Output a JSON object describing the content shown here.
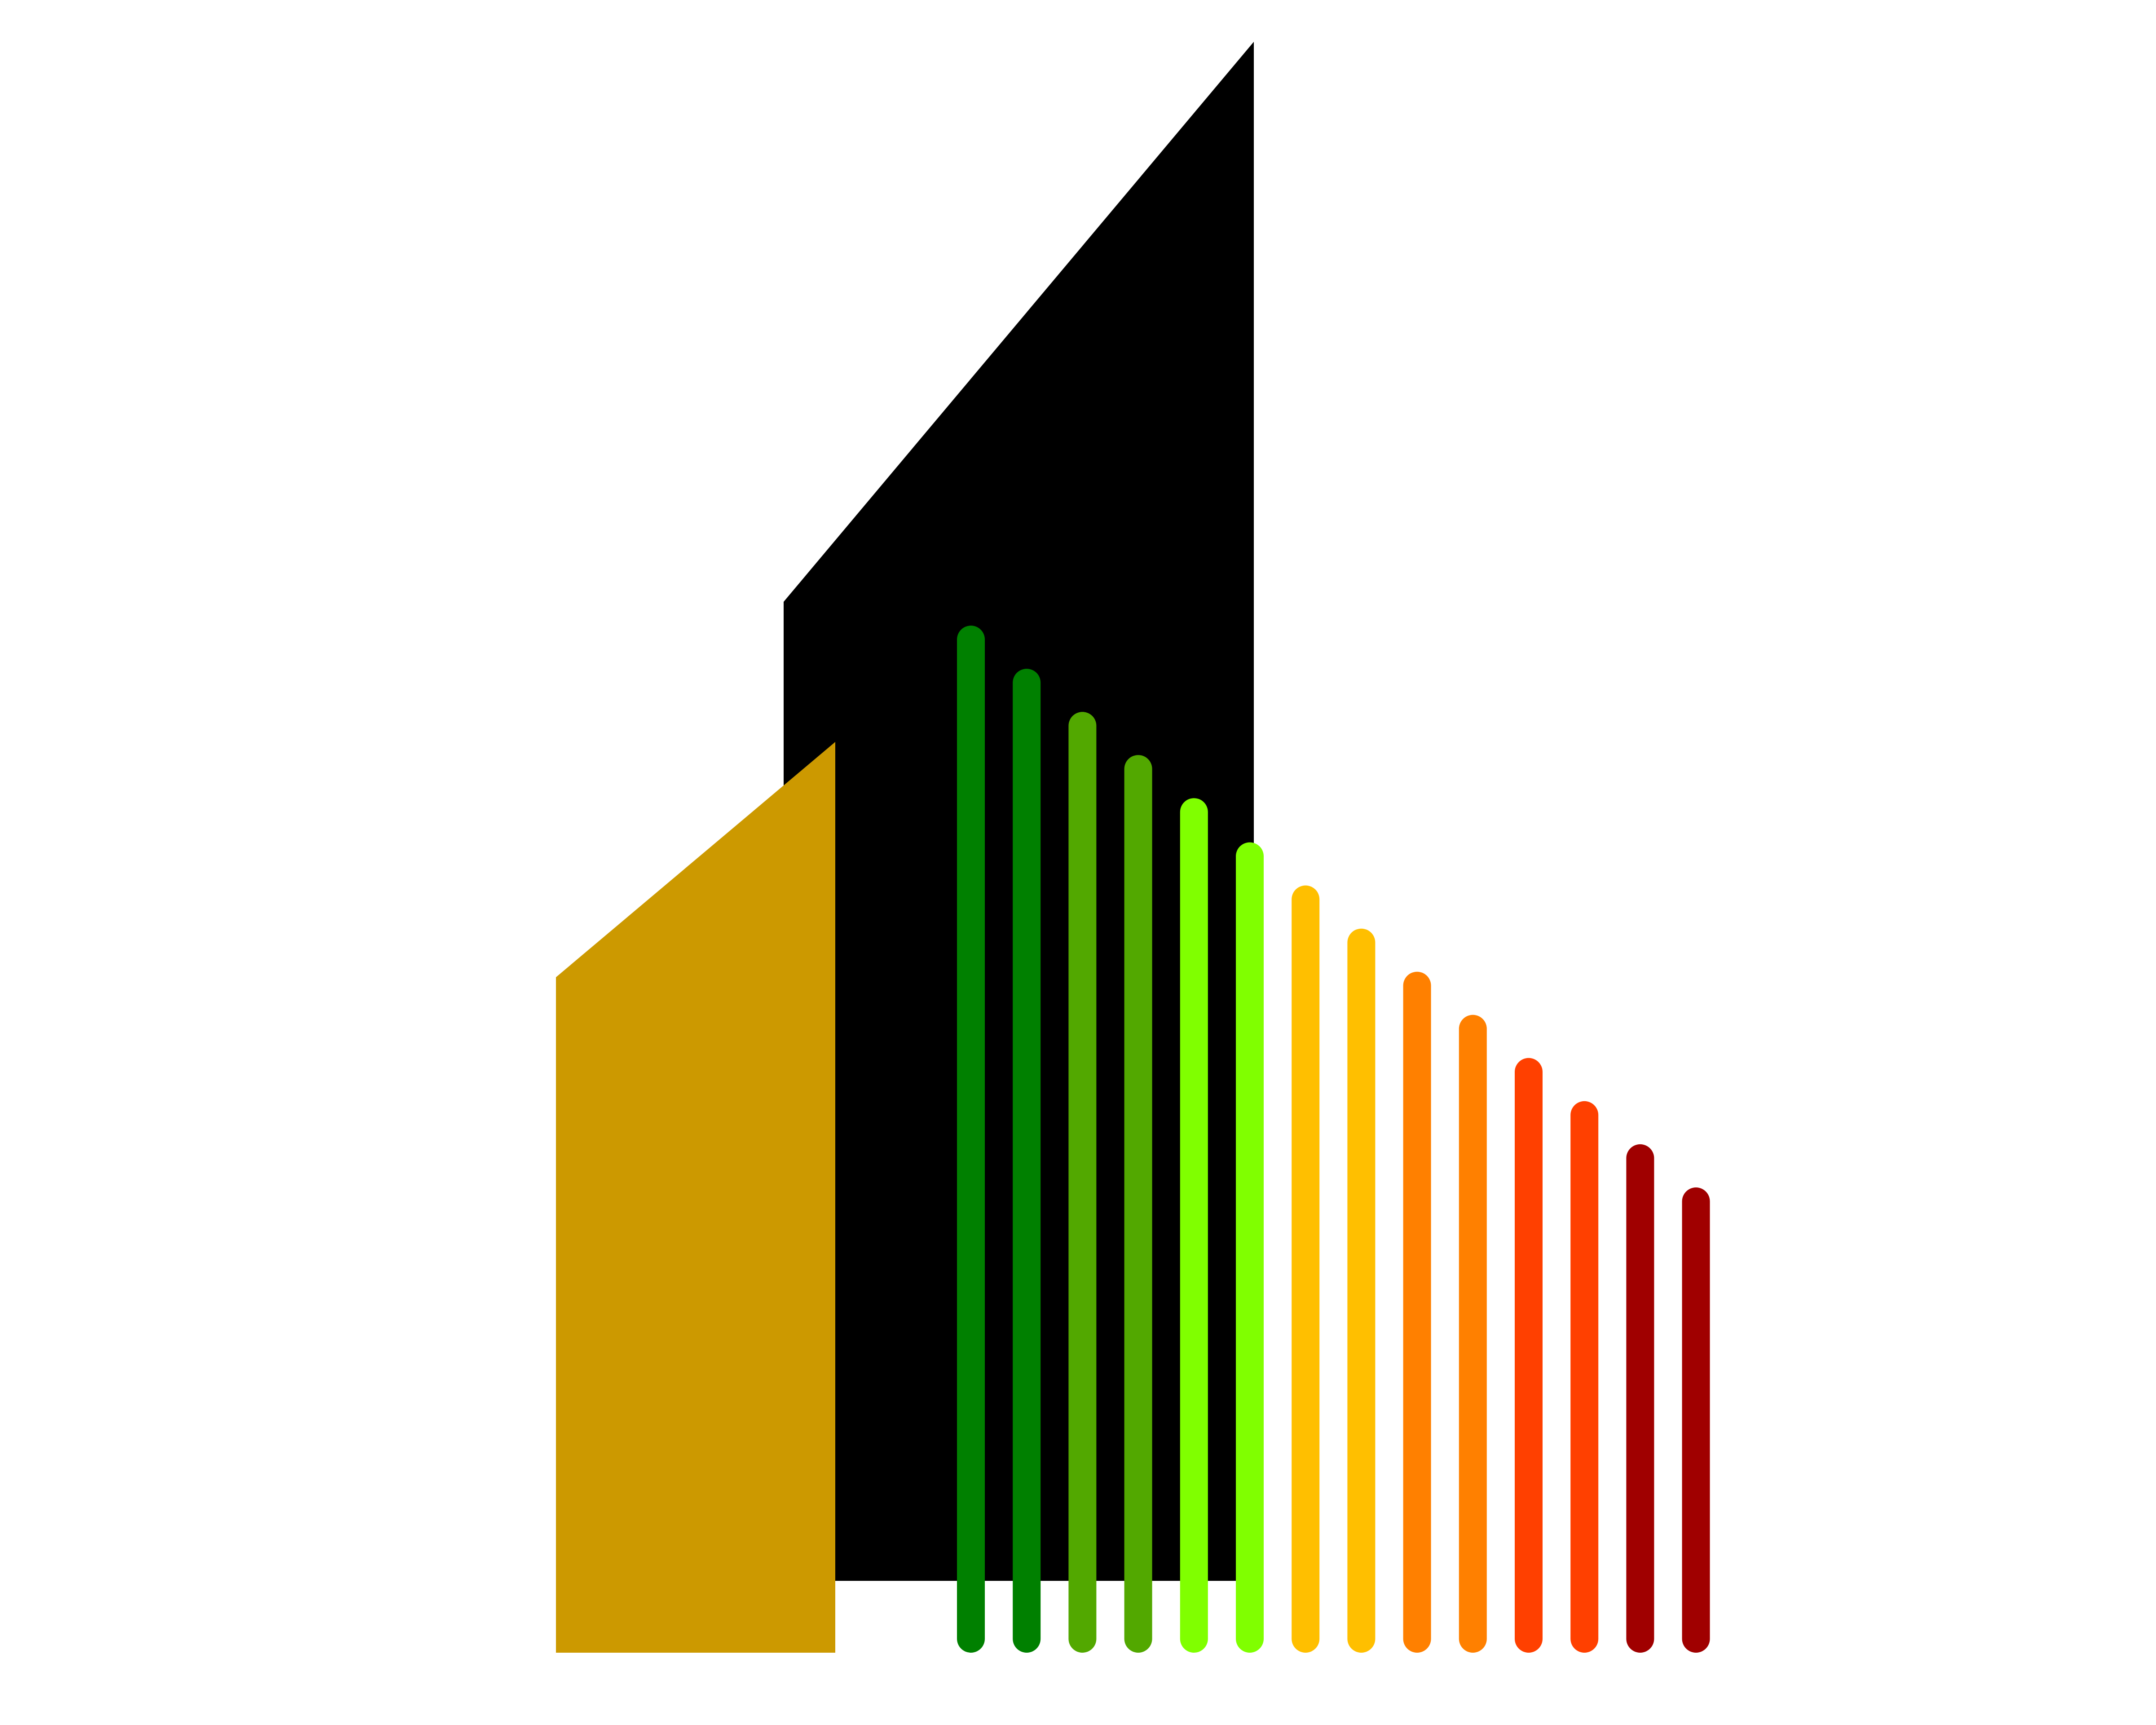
{
  "logo": {
    "background_color": "#ffffff",
    "tall_building_color": "#000000",
    "short_building_color": "#cc9900",
    "energy_bars": [
      {
        "color": "#008000",
        "level": 1.0
      },
      {
        "color": "#008000",
        "level": 0.958
      },
      {
        "color": "#52a800",
        "level": 0.916
      },
      {
        "color": "#52a800",
        "level": 0.874
      },
      {
        "color": "#80ff00",
        "level": 0.832
      },
      {
        "color": "#80ff00",
        "level": 0.789
      },
      {
        "color": "#ffbf00",
        "level": 0.747
      },
      {
        "color": "#ffbf00",
        "level": 0.705
      },
      {
        "color": "#ff8000",
        "level": 0.663
      },
      {
        "color": "#ff8000",
        "level": 0.621
      },
      {
        "color": "#ff4000",
        "level": 0.579
      },
      {
        "color": "#ff4000",
        "level": 0.537
      },
      {
        "color": "#a00000",
        "level": 0.495
      },
      {
        "color": "#a00000",
        "level": 0.453
      }
    ]
  }
}
